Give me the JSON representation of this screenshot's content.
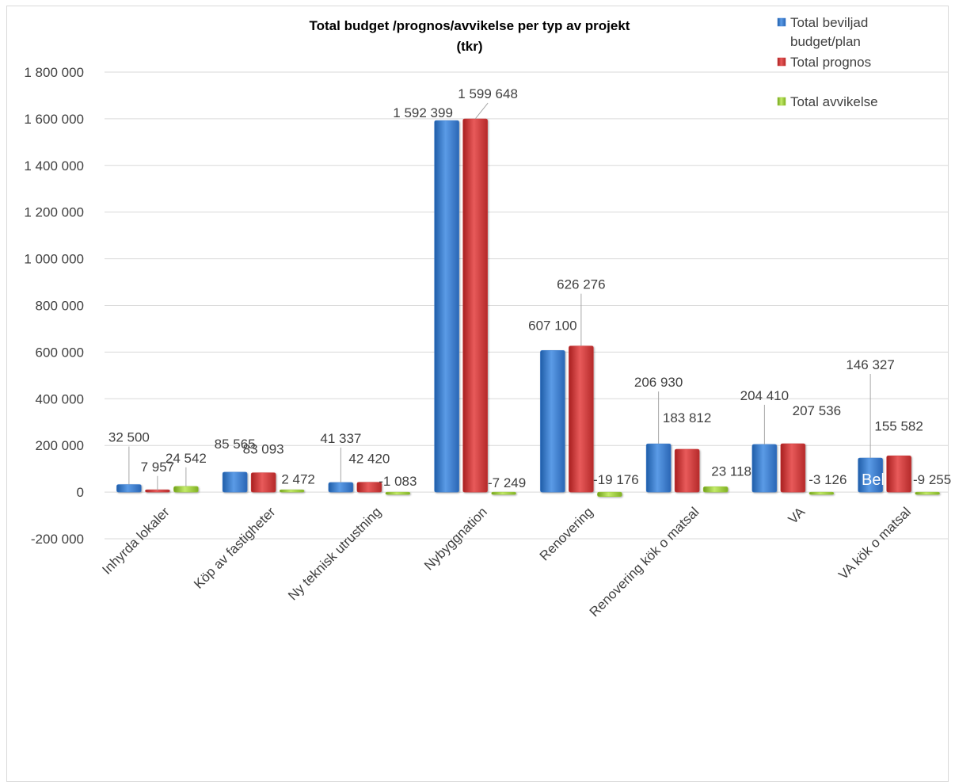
{
  "chart_data": {
    "type": "bar",
    "title_lines": [
      "Total budget /prognos/avvikelse per typ av projekt",
      "(tkr)"
    ],
    "categories": [
      "Inhyrda lokaler",
      "Köp av fastigheter",
      "Ny teknisk utrustning",
      "Nybyggnation",
      "Renovering",
      "Renovering kök o matsal",
      "VA",
      "VA kök o matsal"
    ],
    "series": [
      {
        "name": "Total beviljad budget/plan",
        "legend_lines": [
          "Total beviljad",
          "budget/plan"
        ],
        "color": "#3d7fd1",
        "values": [
          32500,
          85565,
          41337,
          1592399,
          607100,
          206930,
          204410,
          146327
        ],
        "labels": [
          "32 500",
          "85 565",
          "41 337",
          "1 592 399",
          "607 100",
          "206 930",
          "204 410",
          "146 327"
        ]
      },
      {
        "name": "Total prognos",
        "legend_lines": [
          "Total prognos"
        ],
        "color": "#d23a3a",
        "values": [
          7957,
          83093,
          42420,
          1599648,
          626276,
          183812,
          207536,
          155582
        ],
        "labels": [
          "7 957",
          "83 093",
          "42 420",
          "1 599 648",
          "626 276",
          "183 812",
          "207 536",
          "155 582"
        ]
      },
      {
        "name": "Total avvikelse",
        "legend_lines": [
          "Total avvikelse"
        ],
        "color": "#9acd32",
        "values": [
          24542,
          2472,
          -1083,
          -7249,
          -19176,
          23118,
          -3126,
          -9255
        ],
        "labels": [
          "24 542",
          "2 472",
          "-1 083",
          "-7 249",
          "-19 176",
          "23 118",
          "-3 126",
          "-9 255"
        ]
      }
    ],
    "yticks": [
      "-200 000",
      "0",
      "200 000",
      "400 000",
      "600 000",
      "800 000",
      "1 000 000",
      "1 200 000",
      "1 400 000",
      "1 600 000",
      "1 800 000"
    ],
    "ylim": [
      -200000,
      1800000
    ],
    "grid": true,
    "legend_position": "top-right",
    "stray_text": "Bel"
  }
}
